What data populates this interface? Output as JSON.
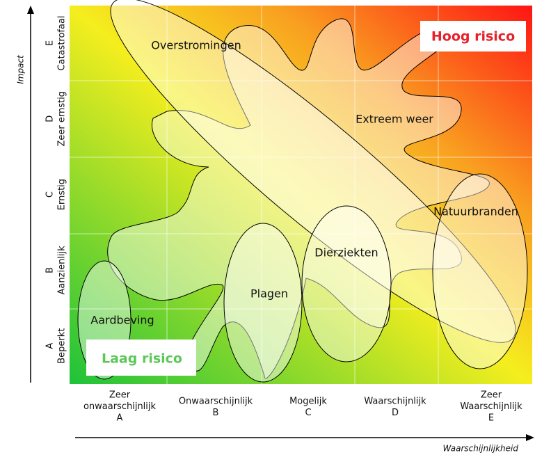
{
  "axes": {
    "y_title": "Impact",
    "x_title": "Waarschijnlijkheid"
  },
  "impact_levels": [
    {
      "letter": "A",
      "label": "Beperkt"
    },
    {
      "letter": "B",
      "label": "Aanzienlijk"
    },
    {
      "letter": "C",
      "label": "Ernstig"
    },
    {
      "letter": "D",
      "label": "Zeer ernstig"
    },
    {
      "letter": "E",
      "label": "Catastrofaal"
    }
  ],
  "likelihood_levels": [
    {
      "lines": [
        "Zeer",
        "onwaarschijnlijk",
        "A"
      ]
    },
    {
      "lines": [
        "Onwaarschijnlijk",
        "B"
      ]
    },
    {
      "lines": [
        "Mogelijk",
        "C"
      ]
    },
    {
      "lines": [
        "Waarschijnlijk",
        "D"
      ]
    },
    {
      "lines": [
        "Zeer",
        "Waarschijnlijk",
        "E"
      ]
    }
  ],
  "zones": {
    "high": "Hoog risico",
    "low": "Laag risico"
  },
  "risks": [
    "Overstromingen",
    "Extreem weer",
    "Natuurbranden",
    "Dierziekten",
    "Plagen",
    "Aardbeving"
  ]
}
